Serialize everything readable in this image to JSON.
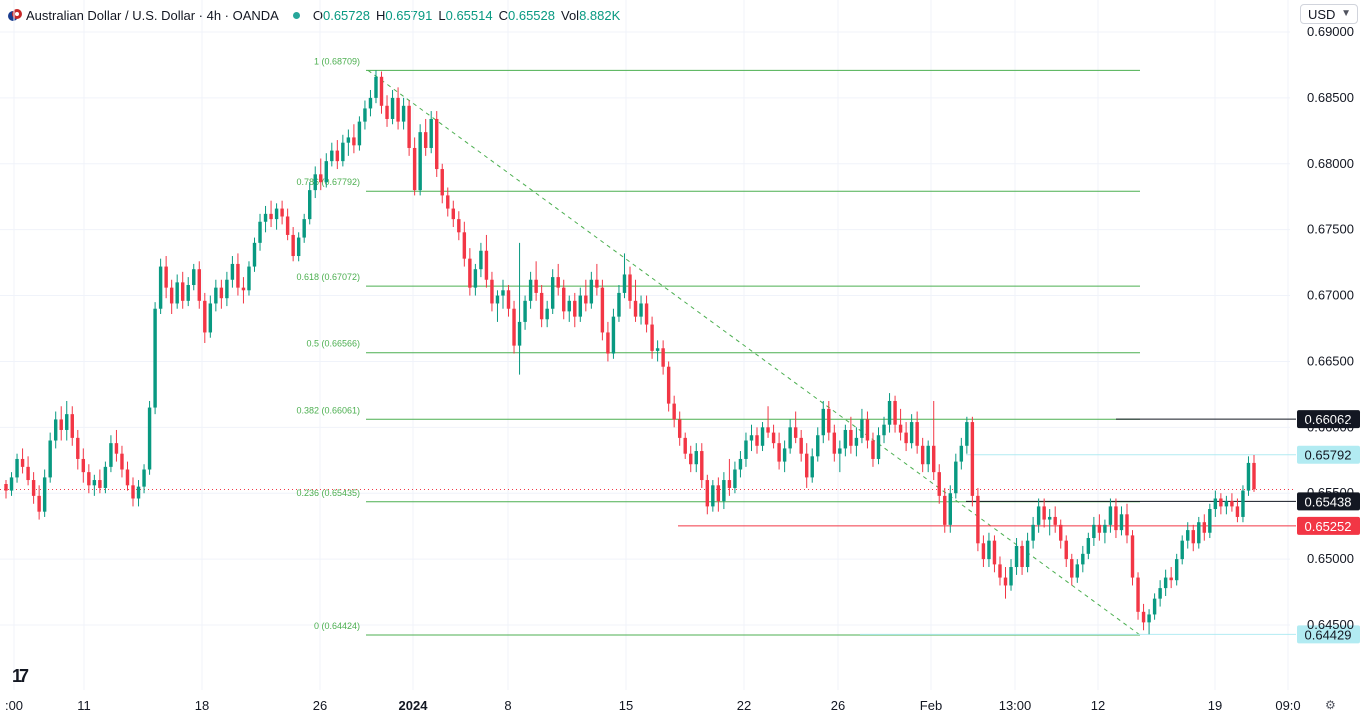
{
  "header": {
    "title": "Australian Dollar / U.S. Dollar · 4h · OANDA",
    "open_label": "O",
    "open": "0.65728",
    "high_label": "H",
    "high": "0.65791",
    "low_label": "L",
    "low": "0.65514",
    "close_label": "C",
    "close": "0.65528",
    "vol_label": "Vol",
    "vol": "8.882K"
  },
  "currency_button": {
    "label": "USD"
  },
  "logo_text": "17",
  "colors": {
    "up": "#089981",
    "down": "#f23645",
    "fib": "#4caf50",
    "grid": "#f0f3fa"
  },
  "chart_data": {
    "type": "candlestick",
    "ylim": [
      0.6423,
      0.6912
    ],
    "y_ticks": [
      "0.69000",
      "0.68500",
      "0.68000",
      "0.67500",
      "0.67000",
      "0.66500",
      "0.66000",
      "0.65500",
      "0.65000",
      "0.64500"
    ],
    "x_ticks": [
      ":00",
      "11",
      "18",
      "26",
      "2024",
      "8",
      "15",
      "22",
      "26",
      "Feb",
      "13:00",
      "12",
      "19",
      "09:0"
    ],
    "fib_levels": [
      {
        "label": "1 (0.68709)",
        "value": 0.68709
      },
      {
        "label": "0.786 (0.67792)",
        "value": 0.67792
      },
      {
        "label": "0.618 (0.67072)",
        "value": 0.67072
      },
      {
        "label": "0.5 (0.66566)",
        "value": 0.66566
      },
      {
        "label": "0.382 (0.66061)",
        "value": 0.66061
      },
      {
        "label": "0.236 (0.65435)",
        "value": 0.65435
      },
      {
        "label": "0 (0.64424)",
        "value": 0.64424
      }
    ],
    "price_labels": [
      {
        "text": "0.66062",
        "value": 0.66062,
        "style": "black"
      },
      {
        "text": "0.65792",
        "value": 0.65792,
        "style": "light"
      },
      {
        "text": "0.65438",
        "value": 0.65438,
        "style": "black"
      },
      {
        "text": "0.65252",
        "value": 0.65252,
        "style": "red"
      },
      {
        "text": "0.64429",
        "value": 0.64429,
        "style": "light"
      }
    ],
    "candles": [
      [
        0.6557,
        0.656,
        0.6546,
        0.6552
      ],
      [
        0.6552,
        0.6566,
        0.6548,
        0.6562
      ],
      [
        0.6562,
        0.658,
        0.6558,
        0.6576
      ],
      [
        0.6576,
        0.6584,
        0.6565,
        0.657
      ],
      [
        0.657,
        0.6578,
        0.6556,
        0.656
      ],
      [
        0.656,
        0.6566,
        0.6542,
        0.6548
      ],
      [
        0.6548,
        0.6556,
        0.653,
        0.6536
      ],
      [
        0.6536,
        0.6568,
        0.6532,
        0.6562
      ],
      [
        0.6562,
        0.6596,
        0.6558,
        0.659
      ],
      [
        0.659,
        0.6612,
        0.6584,
        0.6606
      ],
      [
        0.6606,
        0.6616,
        0.659,
        0.6598
      ],
      [
        0.6598,
        0.662,
        0.659,
        0.661
      ],
      [
        0.661,
        0.6616,
        0.6586,
        0.6592
      ],
      [
        0.6592,
        0.6598,
        0.6568,
        0.6576
      ],
      [
        0.6576,
        0.6584,
        0.6558,
        0.6566
      ],
      [
        0.6566,
        0.6572,
        0.655,
        0.6556
      ],
      [
        0.6556,
        0.6564,
        0.6548,
        0.656
      ],
      [
        0.656,
        0.6568,
        0.655,
        0.6554
      ],
      [
        0.6554,
        0.6574,
        0.655,
        0.657
      ],
      [
        0.657,
        0.6594,
        0.6566,
        0.6588
      ],
      [
        0.6588,
        0.6598,
        0.6574,
        0.658
      ],
      [
        0.658,
        0.6586,
        0.6562,
        0.6568
      ],
      [
        0.6568,
        0.6574,
        0.6552,
        0.6556
      ],
      [
        0.6556,
        0.6562,
        0.654,
        0.6546
      ],
      [
        0.6546,
        0.656,
        0.654,
        0.6555
      ],
      [
        0.6555,
        0.6572,
        0.655,
        0.6568
      ],
      [
        0.6568,
        0.662,
        0.6564,
        0.6615
      ],
      [
        0.6615,
        0.6695,
        0.661,
        0.669
      ],
      [
        0.669,
        0.6728,
        0.6686,
        0.6722
      ],
      [
        0.6722,
        0.673,
        0.6698,
        0.6706
      ],
      [
        0.6706,
        0.6712,
        0.6686,
        0.6694
      ],
      [
        0.6694,
        0.6716,
        0.669,
        0.671
      ],
      [
        0.671,
        0.6718,
        0.669,
        0.6696
      ],
      [
        0.6696,
        0.6714,
        0.6692,
        0.6708
      ],
      [
        0.6708,
        0.6724,
        0.6704,
        0.672
      ],
      [
        0.672,
        0.6726,
        0.669,
        0.6696
      ],
      [
        0.6696,
        0.6702,
        0.6664,
        0.6672
      ],
      [
        0.6672,
        0.67,
        0.6668,
        0.6694
      ],
      [
        0.6694,
        0.6712,
        0.6688,
        0.6706
      ],
      [
        0.6706,
        0.6712,
        0.669,
        0.6698
      ],
      [
        0.6698,
        0.6718,
        0.6692,
        0.6712
      ],
      [
        0.6712,
        0.673,
        0.6706,
        0.6724
      ],
      [
        0.6724,
        0.6732,
        0.67,
        0.6706
      ],
      [
        0.6706,
        0.6714,
        0.6694,
        0.6704
      ],
      [
        0.6704,
        0.6726,
        0.67,
        0.6722
      ],
      [
        0.6722,
        0.6744,
        0.6718,
        0.674
      ],
      [
        0.674,
        0.6762,
        0.6734,
        0.6756
      ],
      [
        0.6756,
        0.6768,
        0.6748,
        0.6762
      ],
      [
        0.6762,
        0.6772,
        0.6752,
        0.6758
      ],
      [
        0.6758,
        0.677,
        0.675,
        0.6766
      ],
      [
        0.6766,
        0.6772,
        0.6754,
        0.676
      ],
      [
        0.676,
        0.6766,
        0.6742,
        0.6746
      ],
      [
        0.6746,
        0.6752,
        0.6726,
        0.673
      ],
      [
        0.673,
        0.6748,
        0.6726,
        0.6744
      ],
      [
        0.6744,
        0.6762,
        0.674,
        0.6758
      ],
      [
        0.6758,
        0.6786,
        0.6754,
        0.678
      ],
      [
        0.678,
        0.6798,
        0.6774,
        0.6792
      ],
      [
        0.6792,
        0.6804,
        0.678,
        0.6786
      ],
      [
        0.6786,
        0.6808,
        0.6782,
        0.6802
      ],
      [
        0.6802,
        0.6816,
        0.6798,
        0.681
      ],
      [
        0.681,
        0.6818,
        0.6796,
        0.6802
      ],
      [
        0.6802,
        0.6822,
        0.6798,
        0.6816
      ],
      [
        0.6816,
        0.6826,
        0.6806,
        0.682
      ],
      [
        0.682,
        0.683,
        0.6808,
        0.6814
      ],
      [
        0.6814,
        0.6836,
        0.681,
        0.6832
      ],
      [
        0.6832,
        0.6848,
        0.6826,
        0.6842
      ],
      [
        0.6842,
        0.6856,
        0.6836,
        0.685
      ],
      [
        0.685,
        0.6871,
        0.6846,
        0.6866
      ],
      [
        0.6866,
        0.687,
        0.6838,
        0.6844
      ],
      [
        0.6844,
        0.6852,
        0.6828,
        0.6834
      ],
      [
        0.6834,
        0.6856,
        0.683,
        0.685
      ],
      [
        0.685,
        0.6858,
        0.6826,
        0.6832
      ],
      [
        0.6832,
        0.685,
        0.6826,
        0.6844
      ],
      [
        0.6844,
        0.6848,
        0.6806,
        0.6812
      ],
      [
        0.6812,
        0.682,
        0.6776,
        0.678
      ],
      [
        0.678,
        0.683,
        0.6776,
        0.6824
      ],
      [
        0.6824,
        0.6834,
        0.6806,
        0.6812
      ],
      [
        0.6812,
        0.684,
        0.6808,
        0.6834
      ],
      [
        0.6834,
        0.684,
        0.679,
        0.6796
      ],
      [
        0.6796,
        0.68,
        0.677,
        0.6776
      ],
      [
        0.6776,
        0.6782,
        0.676,
        0.6766
      ],
      [
        0.6766,
        0.6772,
        0.6752,
        0.6758
      ],
      [
        0.6758,
        0.6764,
        0.6742,
        0.6748
      ],
      [
        0.6748,
        0.6756,
        0.6722,
        0.6728
      ],
      [
        0.6728,
        0.6736,
        0.67,
        0.6706
      ],
      [
        0.6706,
        0.6724,
        0.67,
        0.672
      ],
      [
        0.672,
        0.674,
        0.6714,
        0.6734
      ],
      [
        0.6734,
        0.6746,
        0.6706,
        0.6712
      ],
      [
        0.6712,
        0.6718,
        0.6688,
        0.6694
      ],
      [
        0.6694,
        0.6704,
        0.668,
        0.67
      ],
      [
        0.67,
        0.6712,
        0.669,
        0.6704
      ],
      [
        0.6704,
        0.6708,
        0.6684,
        0.669
      ],
      [
        0.669,
        0.6696,
        0.6656,
        0.6662
      ],
      [
        0.6662,
        0.674,
        0.664,
        0.668
      ],
      [
        0.668,
        0.67,
        0.6674,
        0.6696
      ],
      [
        0.6696,
        0.6718,
        0.669,
        0.6712
      ],
      [
        0.6712,
        0.6726,
        0.6696,
        0.6702
      ],
      [
        0.6702,
        0.6708,
        0.6676,
        0.6682
      ],
      [
        0.6682,
        0.6696,
        0.6676,
        0.669
      ],
      [
        0.669,
        0.672,
        0.6686,
        0.6714
      ],
      [
        0.6714,
        0.6724,
        0.67,
        0.6706
      ],
      [
        0.6706,
        0.6712,
        0.6682,
        0.6688
      ],
      [
        0.6688,
        0.67,
        0.668,
        0.6696
      ],
      [
        0.6696,
        0.6702,
        0.6676,
        0.6684
      ],
      [
        0.6684,
        0.6706,
        0.668,
        0.67
      ],
      [
        0.67,
        0.6712,
        0.6688,
        0.6694
      ],
      [
        0.6694,
        0.6718,
        0.669,
        0.6712
      ],
      [
        0.6712,
        0.6724,
        0.67,
        0.6706
      ],
      [
        0.6706,
        0.6712,
        0.6666,
        0.6672
      ],
      [
        0.6672,
        0.668,
        0.665,
        0.6656
      ],
      [
        0.6656,
        0.669,
        0.6652,
        0.6684
      ],
      [
        0.6684,
        0.6708,
        0.668,
        0.6702
      ],
      [
        0.6702,
        0.6732,
        0.6698,
        0.6716
      ],
      [
        0.6716,
        0.6722,
        0.669,
        0.6696
      ],
      [
        0.6696,
        0.6712,
        0.668,
        0.6684
      ],
      [
        0.6684,
        0.67,
        0.6678,
        0.6694
      ],
      [
        0.6694,
        0.67,
        0.6672,
        0.6678
      ],
      [
        0.6678,
        0.6684,
        0.6652,
        0.6658
      ],
      [
        0.6658,
        0.6666,
        0.665,
        0.666
      ],
      [
        0.666,
        0.6666,
        0.664,
        0.6646
      ],
      [
        0.6646,
        0.665,
        0.6612,
        0.6618
      ],
      [
        0.6618,
        0.6624,
        0.66,
        0.6606
      ],
      [
        0.6606,
        0.6612,
        0.6586,
        0.6592
      ],
      [
        0.6592,
        0.6596,
        0.6576,
        0.658
      ],
      [
        0.658,
        0.6586,
        0.6566,
        0.6572
      ],
      [
        0.6572,
        0.6588,
        0.6566,
        0.6582
      ],
      [
        0.6582,
        0.6588,
        0.6554,
        0.656
      ],
      [
        0.656,
        0.6564,
        0.6534,
        0.654
      ],
      [
        0.654,
        0.656,
        0.6536,
        0.6556
      ],
      [
        0.6556,
        0.6562,
        0.6536,
        0.6544
      ],
      [
        0.6544,
        0.6566,
        0.6538,
        0.656
      ],
      [
        0.656,
        0.6576,
        0.6548,
        0.6554
      ],
      [
        0.6554,
        0.6574,
        0.655,
        0.6568
      ],
      [
        0.6568,
        0.6582,
        0.6562,
        0.6576
      ],
      [
        0.6576,
        0.6596,
        0.657,
        0.659
      ],
      [
        0.659,
        0.6602,
        0.6582,
        0.6594
      ],
      [
        0.6594,
        0.66,
        0.658,
        0.6586
      ],
      [
        0.6586,
        0.6604,
        0.6582,
        0.66
      ],
      [
        0.66,
        0.6616,
        0.6592,
        0.6596
      ],
      [
        0.6596,
        0.6602,
        0.6584,
        0.6588
      ],
      [
        0.6588,
        0.6596,
        0.6568,
        0.6574
      ],
      [
        0.6574,
        0.659,
        0.6566,
        0.6584
      ],
      [
        0.6584,
        0.6606,
        0.658,
        0.66
      ],
      [
        0.66,
        0.6612,
        0.6588,
        0.6592
      ],
      [
        0.6592,
        0.6598,
        0.6574,
        0.658
      ],
      [
        0.658,
        0.6588,
        0.6554,
        0.6562
      ],
      [
        0.6562,
        0.6584,
        0.6558,
        0.6578
      ],
      [
        0.6578,
        0.66,
        0.6574,
        0.6594
      ],
      [
        0.6594,
        0.662,
        0.6588,
        0.6614
      ],
      [
        0.6614,
        0.662,
        0.659,
        0.6596
      ],
      [
        0.6596,
        0.6602,
        0.6574,
        0.658
      ],
      [
        0.658,
        0.659,
        0.6566,
        0.6584
      ],
      [
        0.6584,
        0.6602,
        0.6578,
        0.6598
      ],
      [
        0.6598,
        0.6608,
        0.658,
        0.6586
      ],
      [
        0.6586,
        0.66,
        0.6578,
        0.6592
      ],
      [
        0.6592,
        0.6614,
        0.6588,
        0.6606
      ],
      [
        0.6606,
        0.6612,
        0.6584,
        0.659
      ],
      [
        0.659,
        0.6596,
        0.657,
        0.6576
      ],
      [
        0.6576,
        0.66,
        0.6572,
        0.6594
      ],
      [
        0.6594,
        0.6608,
        0.6588,
        0.6602
      ],
      [
        0.6602,
        0.6626,
        0.6596,
        0.662
      ],
      [
        0.662,
        0.6624,
        0.6596,
        0.6602
      ],
      [
        0.6602,
        0.6614,
        0.659,
        0.6596
      ],
      [
        0.6596,
        0.6604,
        0.6582,
        0.6588
      ],
      [
        0.6588,
        0.661,
        0.6584,
        0.6604
      ],
      [
        0.6604,
        0.6612,
        0.658,
        0.6586
      ],
      [
        0.6586,
        0.6592,
        0.6566,
        0.6572
      ],
      [
        0.6572,
        0.659,
        0.6566,
        0.6586
      ],
      [
        0.6586,
        0.662,
        0.656,
        0.6566
      ],
      [
        0.6566,
        0.6572,
        0.6542,
        0.6548
      ],
      [
        0.6548,
        0.6554,
        0.652,
        0.6526
      ],
      [
        0.6526,
        0.6556,
        0.652,
        0.655
      ],
      [
        0.655,
        0.658,
        0.6546,
        0.6574
      ],
      [
        0.6574,
        0.6592,
        0.6568,
        0.6586
      ],
      [
        0.6586,
        0.6608,
        0.658,
        0.6604
      ],
      [
        0.6604,
        0.6608,
        0.654,
        0.6548
      ],
      [
        0.6548,
        0.6554,
        0.6506,
        0.6512
      ],
      [
        0.6512,
        0.6518,
        0.6494,
        0.65
      ],
      [
        0.65,
        0.652,
        0.6494,
        0.6514
      ],
      [
        0.6514,
        0.6518,
        0.649,
        0.6496
      ],
      [
        0.6496,
        0.6502,
        0.648,
        0.6486
      ],
      [
        0.6486,
        0.6494,
        0.647,
        0.648
      ],
      [
        0.648,
        0.65,
        0.6476,
        0.6494
      ],
      [
        0.6494,
        0.6516,
        0.6488,
        0.651
      ],
      [
        0.651,
        0.6514,
        0.6488,
        0.6494
      ],
      [
        0.6494,
        0.652,
        0.649,
        0.6514
      ],
      [
        0.6514,
        0.6532,
        0.6508,
        0.6526
      ],
      [
        0.6526,
        0.6546,
        0.652,
        0.654
      ],
      [
        0.654,
        0.6546,
        0.6524,
        0.653
      ],
      [
        0.653,
        0.6538,
        0.6518,
        0.6532
      ],
      [
        0.6532,
        0.654,
        0.652,
        0.6526
      ],
      [
        0.6526,
        0.653,
        0.6508,
        0.6514
      ],
      [
        0.6514,
        0.6518,
        0.6494,
        0.65
      ],
      [
        0.65,
        0.6504,
        0.648,
        0.6486
      ],
      [
        0.6486,
        0.65,
        0.6482,
        0.6496
      ],
      [
        0.6496,
        0.651,
        0.649,
        0.6504
      ],
      [
        0.6504,
        0.652,
        0.65,
        0.6516
      ],
      [
        0.6516,
        0.6532,
        0.651,
        0.6526
      ],
      [
        0.6526,
        0.6534,
        0.6514,
        0.652
      ],
      [
        0.652,
        0.653,
        0.6512,
        0.6526
      ],
      [
        0.6526,
        0.6546,
        0.652,
        0.654
      ],
      [
        0.654,
        0.6546,
        0.6516,
        0.6522
      ],
      [
        0.6522,
        0.654,
        0.6518,
        0.6534
      ],
      [
        0.6534,
        0.6542,
        0.6512,
        0.6518
      ],
      [
        0.6518,
        0.6522,
        0.648,
        0.6486
      ],
      [
        0.6486,
        0.649,
        0.6454,
        0.646
      ],
      [
        0.646,
        0.6466,
        0.6446,
        0.6452
      ],
      [
        0.6452,
        0.6462,
        0.6443,
        0.6458
      ],
      [
        0.6458,
        0.6474,
        0.6454,
        0.647
      ],
      [
        0.647,
        0.6484,
        0.6464,
        0.6478
      ],
      [
        0.6478,
        0.6492,
        0.6472,
        0.6486
      ],
      [
        0.6486,
        0.6494,
        0.6478,
        0.6484
      ],
      [
        0.6484,
        0.6504,
        0.648,
        0.65
      ],
      [
        0.65,
        0.6518,
        0.6496,
        0.6514
      ],
      [
        0.6514,
        0.6528,
        0.6508,
        0.6522
      ],
      [
        0.6522,
        0.6526,
        0.6506,
        0.6512
      ],
      [
        0.6512,
        0.6532,
        0.6508,
        0.6528
      ],
      [
        0.6528,
        0.6534,
        0.6514,
        0.652
      ],
      [
        0.652,
        0.6542,
        0.6516,
        0.6538
      ],
      [
        0.6538,
        0.6552,
        0.6532,
        0.6546
      ],
      [
        0.6546,
        0.655,
        0.6534,
        0.654
      ],
      [
        0.654,
        0.6548,
        0.6534,
        0.6544
      ],
      [
        0.6544,
        0.655,
        0.6536,
        0.654
      ],
      [
        0.654,
        0.6546,
        0.6528,
        0.6532
      ],
      [
        0.6532,
        0.6556,
        0.6528,
        0.6552
      ],
      [
        0.6552,
        0.6578,
        0.6548,
        0.6573
      ],
      [
        0.6573,
        0.6579,
        0.6551,
        0.6553
      ]
    ]
  }
}
